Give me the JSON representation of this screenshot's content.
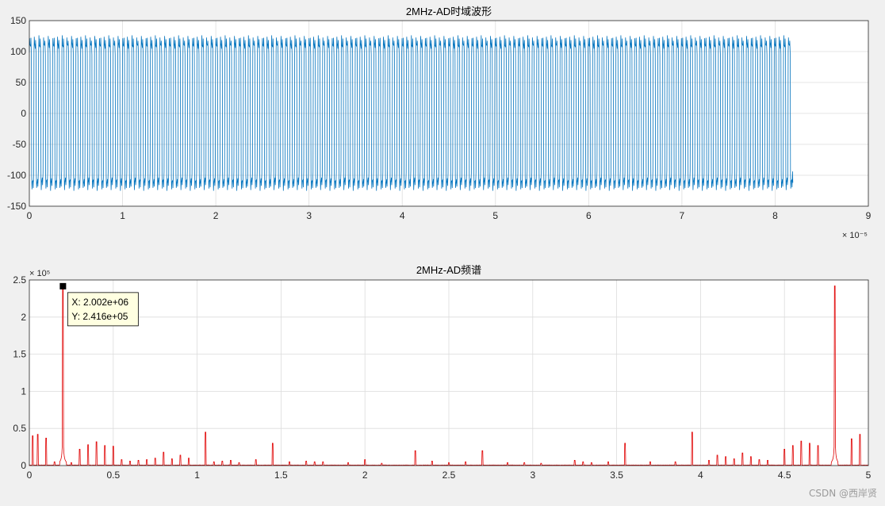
{
  "colors": {
    "figure_bg": "#f0f0f0",
    "axes_bg": "#ffffff",
    "grid": "#dcdcdc",
    "axis": "#262626",
    "time_series": "#0072bd",
    "spectrum_series": "#e00000",
    "datatip_bg": "#ffffe1"
  },
  "watermark": "CSDN @西岸贤",
  "chart_data": [
    {
      "type": "line",
      "title": "2MHz-AD时域波形",
      "xlabel": "",
      "ylabel": "",
      "xlim": [
        0,
        9
      ],
      "ylim": [
        -150,
        150
      ],
      "xticks": [
        0,
        1,
        2,
        3,
        4,
        5,
        6,
        7,
        8,
        9
      ],
      "xtick_labels": [
        "0",
        "1",
        "2",
        "3",
        "4",
        "5",
        "6",
        "7",
        "8",
        "9"
      ],
      "yticks": [
        -150,
        -100,
        -50,
        0,
        50,
        100,
        150
      ],
      "ytick_labels": [
        "-150",
        "-100",
        "-50",
        "0",
        "50",
        "100",
        "150"
      ],
      "x_exponent": "× 10⁻⁵",
      "grid": true,
      "series": [
        {
          "x_start": 0,
          "x_end": 8.19,
          "cycles": 164,
          "amplitude": 123,
          "trough_plateau": -112,
          "peak_plateau": 112,
          "color": "#0072bd"
        }
      ]
    },
    {
      "type": "line",
      "title": "2MHz-AD频谱",
      "xlabel": "",
      "ylabel": "",
      "xlim": [
        0,
        5
      ],
      "ylim": [
        0,
        2.5
      ],
      "xticks": [
        0,
        0.5,
        1,
        1.5,
        2,
        2.5,
        3,
        3.5,
        4,
        4.5,
        5
      ],
      "xtick_labels": [
        "0",
        "0.5",
        "1",
        "1.5",
        "2",
        "2.5",
        "3",
        "3.5",
        "4",
        "4.5",
        "5"
      ],
      "yticks": [
        0,
        0.5,
        1,
        1.5,
        2,
        2.5
      ],
      "ytick_labels": [
        "0",
        "0.5",
        "1",
        "1.5",
        "2",
        "2.5"
      ],
      "y_exponent": "× 10⁵",
      "grid": true,
      "peaks": [
        [
          0.02,
          0.4
        ],
        [
          0.05,
          0.42
        ],
        [
          0.1,
          0.37
        ],
        [
          0.15,
          0.05
        ],
        [
          0.2,
          2.416
        ],
        [
          0.25,
          0.04
        ],
        [
          0.3,
          0.22
        ],
        [
          0.35,
          0.28
        ],
        [
          0.4,
          0.32
        ],
        [
          0.45,
          0.27
        ],
        [
          0.5,
          0.26
        ],
        [
          0.55,
          0.08
        ],
        [
          0.6,
          0.06
        ],
        [
          0.65,
          0.07
        ],
        [
          0.7,
          0.08
        ],
        [
          0.75,
          0.1
        ],
        [
          0.8,
          0.18
        ],
        [
          0.85,
          0.09
        ],
        [
          0.9,
          0.14
        ],
        [
          0.95,
          0.1
        ],
        [
          1.05,
          0.45
        ],
        [
          1.1,
          0.05
        ],
        [
          1.15,
          0.06
        ],
        [
          1.2,
          0.07
        ],
        [
          1.25,
          0.04
        ],
        [
          1.35,
          0.08
        ],
        [
          1.45,
          0.3
        ],
        [
          1.55,
          0.05
        ],
        [
          1.65,
          0.06
        ],
        [
          1.7,
          0.05
        ],
        [
          1.75,
          0.05
        ],
        [
          1.9,
          0.04
        ],
        [
          2.0,
          0.08
        ],
        [
          2.1,
          0.03
        ],
        [
          2.3,
          0.2
        ],
        [
          2.4,
          0.06
        ],
        [
          2.5,
          0.04
        ],
        [
          2.6,
          0.05
        ],
        [
          2.7,
          0.2
        ],
        [
          2.85,
          0.04
        ],
        [
          2.95,
          0.04
        ],
        [
          3.05,
          0.03
        ],
        [
          3.25,
          0.07
        ],
        [
          3.3,
          0.05
        ],
        [
          3.35,
          0.04
        ],
        [
          3.45,
          0.05
        ],
        [
          3.55,
          0.3
        ],
        [
          3.7,
          0.05
        ],
        [
          3.85,
          0.05
        ],
        [
          3.95,
          0.45
        ],
        [
          4.05,
          0.07
        ],
        [
          4.1,
          0.14
        ],
        [
          4.15,
          0.12
        ],
        [
          4.2,
          0.09
        ],
        [
          4.25,
          0.17
        ],
        [
          4.3,
          0.12
        ],
        [
          4.35,
          0.08
        ],
        [
          4.4,
          0.07
        ],
        [
          4.5,
          0.22
        ],
        [
          4.55,
          0.27
        ],
        [
          4.6,
          0.33
        ],
        [
          4.65,
          0.3
        ],
        [
          4.7,
          0.27
        ],
        [
          4.8,
          2.42
        ],
        [
          4.9,
          0.36
        ],
        [
          4.95,
          0.42
        ]
      ],
      "datatip": {
        "x": 0.2002,
        "y": 2.416,
        "x_text": "X: 2.002e+06",
        "y_text": "Y: 2.416e+05"
      }
    }
  ]
}
